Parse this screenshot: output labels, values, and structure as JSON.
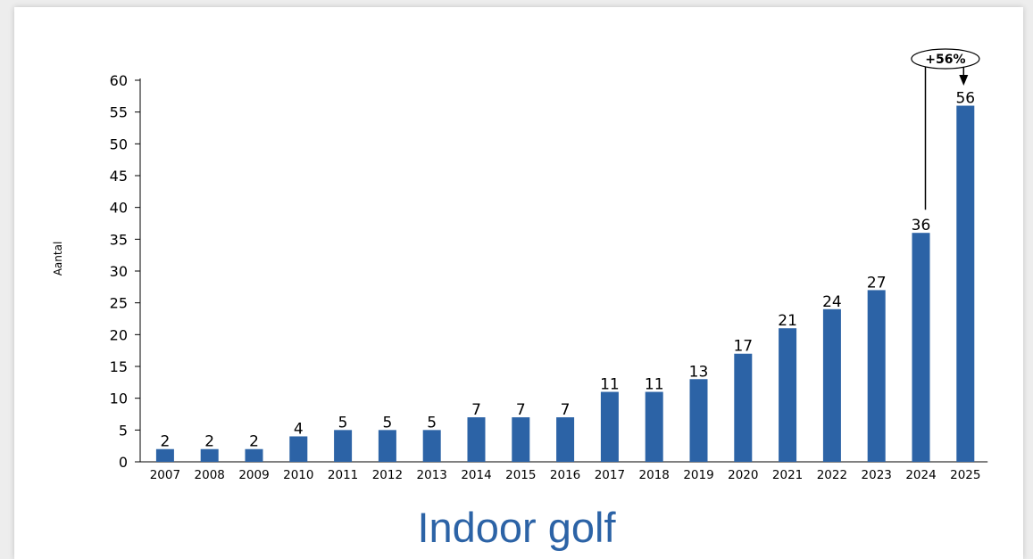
{
  "chart_data": {
    "type": "bar",
    "title": "Indoor golf",
    "ylabel": "Aantal",
    "xlabel": "",
    "ylim": [
      0,
      60
    ],
    "yticks": [
      0,
      5,
      10,
      15,
      20,
      25,
      30,
      35,
      40,
      45,
      50,
      55,
      60
    ],
    "categories": [
      "2007",
      "2008",
      "2009",
      "2010",
      "2011",
      "2012",
      "2013",
      "2014",
      "2015",
      "2016",
      "2017",
      "2018",
      "2019",
      "2020",
      "2021",
      "2022",
      "2023",
      "2024",
      "2025"
    ],
    "values": [
      2,
      2,
      2,
      4,
      5,
      5,
      5,
      7,
      7,
      7,
      11,
      11,
      13,
      17,
      21,
      24,
      27,
      36,
      56
    ],
    "bar_color": "#2c63a6",
    "grid": false,
    "annotation": {
      "text": "+56%",
      "from": "2024",
      "to": "2025"
    }
  }
}
